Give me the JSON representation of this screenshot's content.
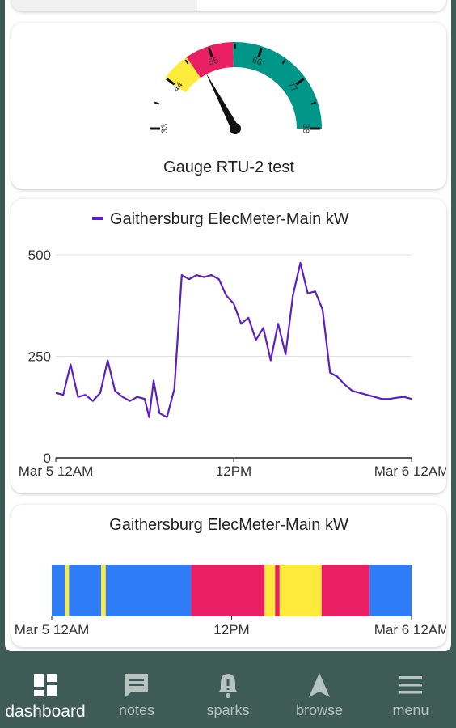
{
  "gauge": {
    "title": "Gauge RTU-2 test",
    "min": 33,
    "max": 88,
    "value": 52,
    "tick_labels": [
      "33",
      "44",
      "55",
      "66",
      "77",
      "88"
    ],
    "bands": [
      {
        "from": 33,
        "to": 44,
        "color": "#ffffff"
      },
      {
        "from": 44,
        "to": 50,
        "color": "#ffeb3b"
      },
      {
        "from": 50,
        "to": 60,
        "color": "#e91e63"
      },
      {
        "from": 60,
        "to": 88,
        "color": "#009688"
      }
    ]
  },
  "chart_data": [
    {
      "type": "line",
      "title": "",
      "series": [
        {
          "name": "Gaithersburg ElecMeter-Main kW",
          "color": "#5b1fc4",
          "x": [
            0,
            0.5,
            1,
            1.5,
            2,
            2.5,
            3,
            3.5,
            4,
            4.5,
            5,
            5.5,
            6,
            6.3,
            6.6,
            7,
            7.5,
            8,
            8.5,
            9,
            9.5,
            10,
            10.5,
            11,
            11.5,
            12,
            12.5,
            13,
            13.5,
            14,
            14.5,
            15,
            15.5,
            16,
            16.5,
            17,
            17.5,
            18,
            18.5,
            19,
            19.5,
            20,
            20.5,
            21,
            21.5,
            22,
            22.5,
            23,
            23.5,
            24
          ],
          "values": [
            160,
            155,
            230,
            150,
            155,
            140,
            160,
            240,
            165,
            150,
            140,
            150,
            145,
            100,
            190,
            110,
            100,
            170,
            450,
            440,
            450,
            445,
            450,
            440,
            400,
            380,
            330,
            345,
            290,
            320,
            240,
            330,
            255,
            400,
            480,
            405,
            410,
            365,
            210,
            200,
            180,
            165,
            160,
            155,
            150,
            145,
            145,
            148,
            150,
            145
          ]
        }
      ],
      "ylim": [
        0,
        500
      ],
      "yticks": [
        "0",
        "250",
        "500"
      ],
      "xticks": [
        "Mar 5 12AM",
        "12PM",
        "Mar 6 12AM"
      ],
      "legend": "top",
      "grid": true
    },
    {
      "type": "bar",
      "title": "Gaithersburg ElecMeter-Main kW",
      "xticks": [
        "Mar 5 12AM",
        "12PM",
        "Mar 6 12AM"
      ],
      "segments": [
        {
          "from": 0,
          "to": 0.9,
          "color": "#2f7df6"
        },
        {
          "from": 0.9,
          "to": 1.15,
          "color": "#ffeb3b"
        },
        {
          "from": 1.15,
          "to": 3.3,
          "color": "#2f7df6"
        },
        {
          "from": 3.3,
          "to": 3.6,
          "color": "#ffeb3b"
        },
        {
          "from": 3.6,
          "to": 9.3,
          "color": "#2f7df6"
        },
        {
          "from": 9.3,
          "to": 14.2,
          "color": "#e91e63"
        },
        {
          "from": 14.2,
          "to": 14.9,
          "color": "#ffeb3b"
        },
        {
          "from": 14.9,
          "to": 15.2,
          "color": "#e91e63"
        },
        {
          "from": 15.2,
          "to": 18.0,
          "color": "#ffeb3b"
        },
        {
          "from": 18.0,
          "to": 21.2,
          "color": "#e91e63"
        },
        {
          "from": 21.2,
          "to": 24.0,
          "color": "#2f7df6"
        }
      ]
    }
  ],
  "nav": {
    "items": [
      {
        "label": "dashboard",
        "icon": "dashboard-icon",
        "active": true
      },
      {
        "label": "notes",
        "icon": "notes-icon",
        "active": false
      },
      {
        "label": "sparks",
        "icon": "bell-alert-icon",
        "active": false
      },
      {
        "label": "browse",
        "icon": "navigation-arrow-icon",
        "active": false
      },
      {
        "label": "menu",
        "icon": "menu-icon",
        "active": false
      }
    ]
  }
}
